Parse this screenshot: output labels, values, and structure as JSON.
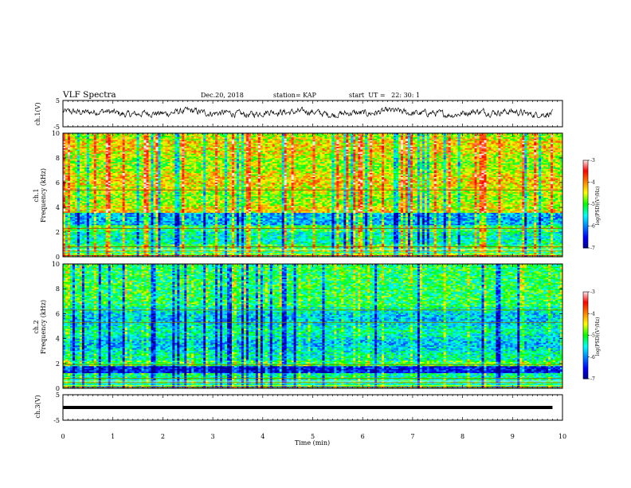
{
  "header": {
    "title": "VLF Spectra",
    "date": "Dec.20, 2018",
    "station": "station= KAP",
    "start_ut": "start  UT =   22: 30: 1"
  },
  "chart_data": [
    {
      "type": "line",
      "id": "ch1-waveform",
      "ylabel": "ch.1(V)",
      "xlim": [
        0,
        10
      ],
      "ylim": [
        -5,
        5
      ],
      "y_ticks": [
        "5",
        "-5"
      ],
      "series": [
        {
          "description_color": "#000000",
          "x_range": [
            0,
            9.8
          ],
          "y_range_approx": [
            -1.5,
            2.5
          ],
          "mean_approx": 0.3
        }
      ]
    },
    {
      "type": "heatmap",
      "id": "ch1-spectrogram",
      "ylabel": "ch.1",
      "ylabel2": "Frequency (kHz)",
      "xlim": [
        0,
        10
      ],
      "ylim": [
        0,
        10
      ],
      "y_ticks": [
        "0",
        "2",
        "4",
        "6",
        "8",
        "10"
      ],
      "colorbar": {
        "label": "log(PSD)(V²/Hz)",
        "range": [
          -7,
          -3
        ],
        "ticks": [
          "-3",
          "-4",
          "-5",
          "-6",
          "-7"
        ]
      },
      "features": {
        "high_activity_band_kHz": [
          3.5,
          10
        ],
        "low_activity_band_kHz": [
          2.4,
          3.4
        ],
        "persistent_line_kHz": [
          5.4,
          2.3,
          0.8
        ]
      }
    },
    {
      "type": "heatmap",
      "id": "ch2-spectrogram",
      "ylabel": "ch.2",
      "ylabel2": "Frequency (kHz)",
      "xlim": [
        0,
        10
      ],
      "ylim": [
        0,
        10
      ],
      "y_ticks": [
        "0",
        "2",
        "4",
        "6",
        "8",
        "10"
      ],
      "colorbar": {
        "label": "log(PSD)(V²/Hz)",
        "range": [
          -7,
          -3
        ],
        "ticks": [
          "-3",
          "-4",
          "-5",
          "-6",
          "-7"
        ]
      },
      "features": {
        "dark_band_kHz": [
          1.3,
          1.8
        ],
        "persistent_line_kHz": [
          6.3,
          5.3,
          1.9,
          0.8
        ]
      }
    },
    {
      "type": "line",
      "id": "ch3-waveform",
      "ylabel": "ch.3(V)",
      "xlim": [
        0,
        10
      ],
      "ylim": [
        -5,
        5
      ],
      "y_ticks": [
        "5",
        "-5"
      ],
      "series": [
        {
          "description_color": "#000000",
          "x_range": [
            0,
            9.8
          ],
          "constant_value_approx": 0.0
        }
      ]
    }
  ],
  "xaxis": {
    "label": "Time (min)",
    "ticks": [
      "0",
      "1",
      "2",
      "3",
      "4",
      "5",
      "6",
      "7",
      "8",
      "9",
      "10"
    ]
  },
  "colors": {
    "jet": [
      "#00008f",
      "#0000ff",
      "#00ffff",
      "#00ff00",
      "#ffff00",
      "#ff0000",
      "#ffffff"
    ]
  }
}
